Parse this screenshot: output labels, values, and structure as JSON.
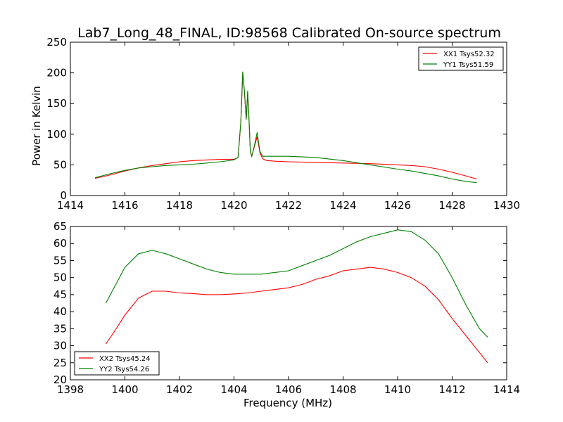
{
  "title": "Lab7_Long_48_FINAL, ID:98568 Calibrated On-source spectrum",
  "colors": {
    "xx": "#ff0000",
    "yy": "#008000",
    "axis": "#000000"
  },
  "chart_data": [
    {
      "type": "line",
      "title": "Lab7_Long_48_FINAL, ID:98568 Calibrated On-source spectrum",
      "xlabel": "",
      "ylabel": "Power in Kelvin",
      "xlim": [
        1414,
        1430
      ],
      "ylim": [
        0,
        250
      ],
      "xticks": [
        "1414",
        "1416",
        "1418",
        "1420",
        "1422",
        "1424",
        "1426",
        "1428",
        "1430"
      ],
      "yticks": [
        "0",
        "50",
        "100",
        "150",
        "200",
        "250"
      ],
      "grid": false,
      "legend": "top-right",
      "series": [
        {
          "name": "XX1 Tsys52.32",
          "color": "#ff0000",
          "x": [
            1414.9,
            1415.5,
            1416.0,
            1416.5,
            1417.0,
            1417.5,
            1418.0,
            1418.5,
            1419.0,
            1419.5,
            1420.0,
            1420.15,
            1420.25,
            1420.32,
            1420.38,
            1420.45,
            1420.5,
            1420.55,
            1420.6,
            1420.65,
            1420.75,
            1420.85,
            1420.95,
            1421.05,
            1421.2,
            1421.5,
            1422.0,
            1423.0,
            1424.0,
            1425.0,
            1426.0,
            1426.5,
            1427.0,
            1427.5,
            1428.0,
            1428.5,
            1428.9
          ],
          "y": [
            28,
            34,
            40,
            45,
            49,
            52,
            55,
            57,
            58,
            59,
            59,
            62,
            120,
            200,
            170,
            124,
            165,
            125,
            72,
            64,
            80,
            96,
            70,
            60,
            57,
            56,
            55,
            54,
            53,
            52,
            50,
            49,
            47,
            43,
            38,
            32,
            27
          ]
        },
        {
          "name": "YY1 Tsys51.59",
          "color": "#008000",
          "x": [
            1414.9,
            1415.5,
            1416.0,
            1416.5,
            1417.0,
            1417.5,
            1418.0,
            1418.5,
            1419.0,
            1419.5,
            1420.0,
            1420.15,
            1420.25,
            1420.32,
            1420.38,
            1420.45,
            1420.5,
            1420.55,
            1420.6,
            1420.65,
            1420.75,
            1420.85,
            1420.95,
            1421.05,
            1421.2,
            1421.5,
            1422.0,
            1423.0,
            1424.0,
            1425.0,
            1426.0,
            1426.5,
            1427.0,
            1427.5,
            1428.0,
            1428.5,
            1428.9
          ],
          "y": [
            29,
            36,
            41,
            45,
            47,
            49,
            50,
            51,
            53,
            55,
            58,
            62,
            120,
            202,
            172,
            124,
            171,
            125,
            72,
            64,
            82,
            103,
            72,
            64,
            64,
            64,
            64,
            62,
            57,
            50,
            43,
            40,
            36,
            32,
            27,
            23,
            21
          ]
        }
      ]
    },
    {
      "type": "line",
      "xlabel": "Frequency (MHz)",
      "ylabel": "",
      "xlim": [
        1398,
        1414
      ],
      "ylim": [
        20,
        65
      ],
      "xticks": [
        "1398",
        "1400",
        "1402",
        "1404",
        "1406",
        "1408",
        "1410",
        "1412",
        "1414"
      ],
      "yticks": [
        "20",
        "25",
        "30",
        "35",
        "40",
        "45",
        "50",
        "55",
        "60",
        "65"
      ],
      "grid": false,
      "legend": "bottom-left",
      "series": [
        {
          "name": "XX2 Tsys45.24",
          "color": "#ff0000",
          "x": [
            1399.3,
            1399.6,
            1400.0,
            1400.5,
            1401.0,
            1401.5,
            1402.0,
            1402.5,
            1403.0,
            1403.5,
            1404.0,
            1404.5,
            1405.0,
            1405.5,
            1406.0,
            1406.5,
            1407.0,
            1407.5,
            1408.0,
            1408.5,
            1409.0,
            1409.5,
            1410.0,
            1410.5,
            1411.0,
            1411.5,
            1412.0,
            1412.5,
            1413.0,
            1413.3
          ],
          "y": [
            30.5,
            34,
            39,
            44,
            46,
            46,
            45.5,
            45.3,
            45,
            45,
            45.2,
            45.5,
            46,
            46.5,
            47,
            48,
            49.5,
            50.5,
            52,
            52.5,
            53,
            52.5,
            51.5,
            50,
            47.5,
            43.5,
            38,
            33,
            28,
            25
          ]
        },
        {
          "name": "YY2 Tsys54.26",
          "color": "#008000",
          "x": [
            1399.3,
            1399.6,
            1400.0,
            1400.5,
            1401.0,
            1401.5,
            1402.0,
            1402.5,
            1403.0,
            1403.5,
            1404.0,
            1404.5,
            1405.0,
            1405.5,
            1406.0,
            1406.5,
            1407.0,
            1407.5,
            1408.0,
            1408.5,
            1409.0,
            1409.5,
            1410.0,
            1410.5,
            1411.0,
            1411.5,
            1412.0,
            1412.5,
            1413.0,
            1413.3
          ],
          "y": [
            42.5,
            47,
            53,
            57,
            58,
            57,
            55.5,
            54,
            52.5,
            51.5,
            51,
            51,
            51,
            51.5,
            52,
            53.5,
            55,
            56.5,
            58.5,
            60.5,
            62,
            63,
            64,
            63.5,
            61,
            57,
            50,
            42,
            35,
            32.5
          ]
        }
      ]
    }
  ]
}
